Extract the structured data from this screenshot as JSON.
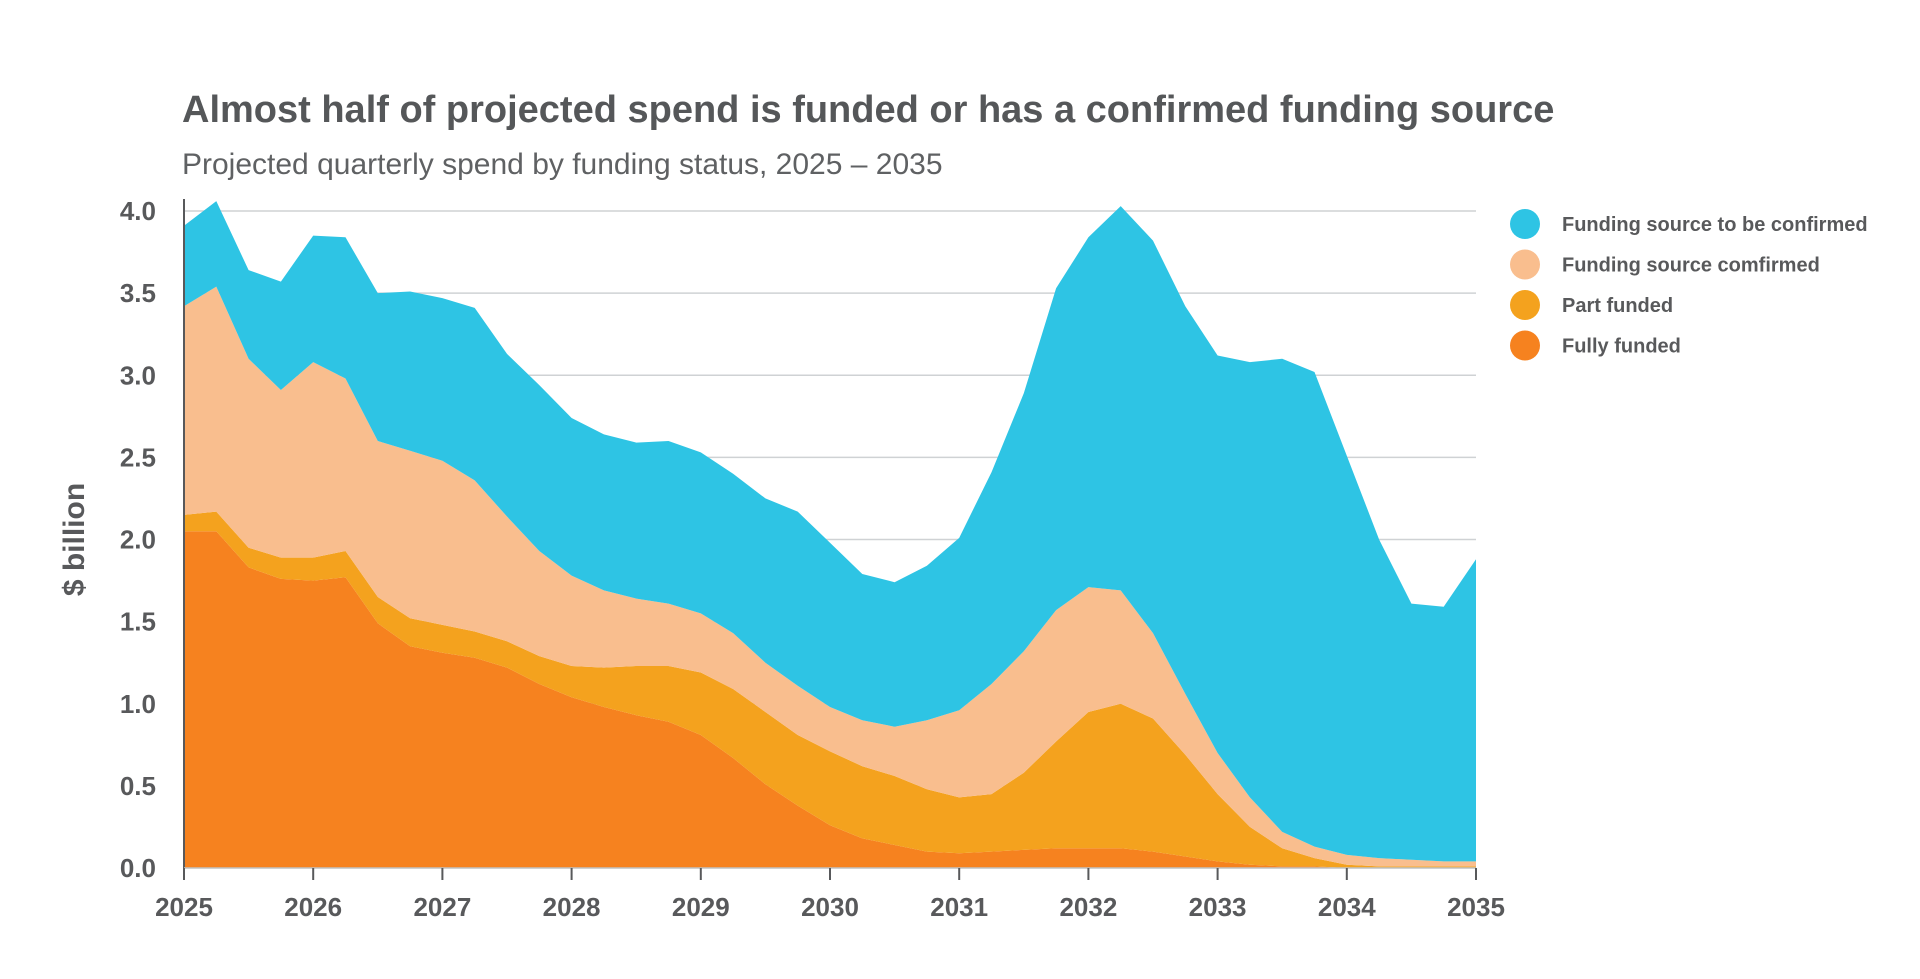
{
  "chart_data": {
    "type": "area",
    "stacked": true,
    "title": "Almost half of projected spend is funded or has a confirmed funding source",
    "subtitle": "Projected quarterly spend by funding status, 2025 – 2035",
    "xlabel": "",
    "ylabel": "$ billion",
    "xlim": [
      2025,
      2035
    ],
    "ylim": [
      0,
      4.0
    ],
    "x_ticks": [
      "2025",
      "2026",
      "2027",
      "2028",
      "2029",
      "2030",
      "2031",
      "2032",
      "2033",
      "2034",
      "2035"
    ],
    "y_ticks": [
      "0.0",
      "0.5",
      "1.0",
      "1.5",
      "2.0",
      "2.5",
      "3.0",
      "3.5",
      "4.0"
    ],
    "grid": true,
    "legend_position": "right",
    "x": [
      2025.0,
      2025.25,
      2025.5,
      2025.75,
      2026.0,
      2026.25,
      2026.5,
      2026.75,
      2027.0,
      2027.25,
      2027.5,
      2027.75,
      2028.0,
      2028.25,
      2028.5,
      2028.75,
      2029.0,
      2029.25,
      2029.5,
      2029.75,
      2030.0,
      2030.25,
      2030.5,
      2030.75,
      2031.0,
      2031.25,
      2031.5,
      2031.75,
      2032.0,
      2032.25,
      2032.5,
      2032.75,
      2033.0,
      2033.25,
      2033.5,
      2033.75,
      2034.0,
      2034.25,
      2034.5,
      2034.75,
      2035.0
    ],
    "series": [
      {
        "name": "Fully funded",
        "color": "#f6821f",
        "values": [
          2.05,
          2.05,
          1.83,
          1.76,
          1.75,
          1.77,
          1.49,
          1.35,
          1.31,
          1.28,
          1.22,
          1.12,
          1.04,
          0.98,
          0.93,
          0.89,
          0.81,
          0.67,
          0.51,
          0.38,
          0.26,
          0.18,
          0.14,
          0.1,
          0.09,
          0.1,
          0.11,
          0.12,
          0.12,
          0.12,
          0.1,
          0.07,
          0.04,
          0.02,
          0.01,
          0.01,
          0.0,
          0.0,
          0.0,
          0.0,
          0.0
        ]
      },
      {
        "name": "Part funded",
        "color": "#f4a21e",
        "values": [
          0.1,
          0.12,
          0.12,
          0.13,
          0.14,
          0.16,
          0.16,
          0.17,
          0.17,
          0.16,
          0.16,
          0.17,
          0.19,
          0.24,
          0.3,
          0.34,
          0.38,
          0.42,
          0.44,
          0.43,
          0.45,
          0.44,
          0.42,
          0.38,
          0.34,
          0.35,
          0.47,
          0.65,
          0.83,
          0.88,
          0.81,
          0.62,
          0.41,
          0.23,
          0.11,
          0.05,
          0.02,
          0.01,
          0.01,
          0.01,
          0.01
        ]
      },
      {
        "name": "Funding source comfirmed",
        "color": "#f9be8e",
        "values": [
          1.27,
          1.37,
          1.15,
          1.02,
          1.19,
          1.05,
          0.95,
          1.02,
          1.0,
          0.92,
          0.76,
          0.64,
          0.55,
          0.47,
          0.41,
          0.38,
          0.36,
          0.34,
          0.3,
          0.3,
          0.27,
          0.28,
          0.3,
          0.42,
          0.53,
          0.67,
          0.74,
          0.8,
          0.76,
          0.69,
          0.52,
          0.37,
          0.25,
          0.18,
          0.1,
          0.07,
          0.06,
          0.05,
          0.04,
          0.03,
          0.03
        ]
      },
      {
        "name": "Funding source to be confirmed",
        "color": "#2ec4e4",
        "values": [
          0.49,
          0.52,
          0.54,
          0.66,
          0.77,
          0.86,
          0.9,
          0.97,
          0.99,
          1.05,
          0.99,
          1.01,
          0.96,
          0.95,
          0.95,
          0.99,
          0.98,
          0.97,
          1.0,
          1.06,
          1.0,
          0.89,
          0.88,
          0.94,
          1.05,
          1.29,
          1.57,
          1.96,
          2.13,
          2.34,
          2.39,
          2.36,
          2.42,
          2.65,
          2.88,
          2.89,
          2.43,
          1.94,
          1.56,
          1.55,
          1.84
        ]
      }
    ],
    "legend_order": [
      "Funding source to be confirmed",
      "Funding source comfirmed",
      "Part funded",
      "Fully funded"
    ]
  }
}
